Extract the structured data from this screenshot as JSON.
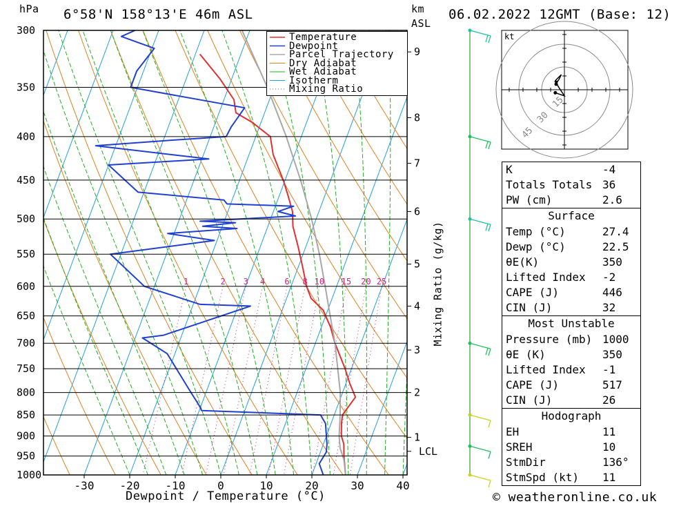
{
  "header": {
    "unit_left": "hPa",
    "location": "6°58'N 158°13'E 46m ASL",
    "km_label": "km",
    "asl_label": "ASL",
    "datetime": "06.02.2022 12GMT (Base: 12)"
  },
  "chart_data": {
    "type": "line",
    "title": "6°58'N 158°13'E 46m ASL",
    "xlabel": "Dewpoint / Temperature (°C)",
    "ylabel": "hPa",
    "y2label": "Mixing Ratio (g/kg)",
    "xlim": [
      -40,
      40
    ],
    "ylim": [
      1000,
      300
    ],
    "y_scale": "log",
    "x_ticks": [
      -30,
      -20,
      -10,
      0,
      10,
      20,
      30,
      40
    ],
    "pressure_levels": [
      300,
      350,
      400,
      450,
      500,
      550,
      600,
      650,
      700,
      750,
      800,
      850,
      900,
      950,
      1000
    ],
    "height_km_ticks": [
      {
        "label": "9",
        "p": 318
      },
      {
        "label": "8",
        "p": 380
      },
      {
        "label": "7",
        "p": 430
      },
      {
        "label": "6",
        "p": 490
      },
      {
        "label": "5",
        "p": 565
      },
      {
        "label": "4",
        "p": 633
      },
      {
        "label": "3",
        "p": 713
      },
      {
        "label": "2",
        "p": 800
      },
      {
        "label": "1",
        "p": 903
      },
      {
        "label": "LCL",
        "p": 938
      }
    ],
    "mixing_ratio_labels": [
      "1",
      "2",
      "3",
      "4",
      "6",
      "8",
      "10",
      "15",
      "20",
      "25"
    ],
    "mixing_ratio_values": [
      1,
      2,
      3,
      4,
      6,
      8,
      10,
      15,
      20,
      25
    ],
    "legend": [
      "Temperature",
      "Dewpoint",
      "Parcel Trajectory",
      "Dry Adiabat",
      "Wet Adiabat",
      "Isotherm",
      "Mixing Ratio"
    ],
    "legend_position": "top-right",
    "colors": {
      "temperature": "#e03030",
      "dewpoint": "#2040d0",
      "parcel": "#a8a8a8",
      "dry_adiabat": "#e08020",
      "wet_adiabat": "#20b020",
      "isotherm": "#20a0e0",
      "mixing": "#d02080"
    },
    "series": [
      {
        "name": "Temperature",
        "points": [
          [
            27.4,
            1000
          ],
          [
            25.5,
            950
          ],
          [
            24.5,
            920
          ],
          [
            23.3,
            900
          ],
          [
            22.3,
            870
          ],
          [
            21.8,
            850
          ],
          [
            22.5,
            830
          ],
          [
            23.2,
            810
          ],
          [
            20.8,
            780
          ],
          [
            18.6,
            750
          ],
          [
            14.3,
            700
          ],
          [
            12.0,
            670
          ],
          [
            9.0,
            640
          ],
          [
            5.4,
            620
          ],
          [
            3.4,
            600
          ],
          [
            1.0,
            570
          ],
          [
            -1.6,
            540
          ],
          [
            -4.5,
            510
          ],
          [
            -5.8,
            490
          ],
          [
            -8.0,
            470
          ],
          [
            -10.4,
            450
          ],
          [
            -14.7,
            420
          ],
          [
            -16.8,
            400
          ],
          [
            -21.9,
            385
          ],
          [
            -26.3,
            375
          ],
          [
            -27.8,
            362
          ],
          [
            -32.6,
            342
          ],
          [
            -39.0,
            320
          ]
        ]
      },
      {
        "name": "Dewpoint",
        "points": [
          [
            22.5,
            1000
          ],
          [
            20.7,
            970
          ],
          [
            21.3,
            940
          ],
          [
            20.8,
            920
          ],
          [
            20.0,
            900
          ],
          [
            18.8,
            870
          ],
          [
            17.0,
            850
          ],
          [
            -9.5,
            840
          ],
          [
            -10.3,
            830
          ],
          [
            -14.3,
            790
          ],
          [
            -21.7,
            720
          ],
          [
            -28.4,
            690
          ],
          [
            -24.0,
            685
          ],
          [
            -7.3,
            633
          ],
          [
            -18.5,
            630
          ],
          [
            -32.2,
            600
          ],
          [
            -42.3,
            550
          ],
          [
            -20.6,
            530
          ],
          [
            -31.4,
            520
          ],
          [
            -16.6,
            513
          ],
          [
            -24.3,
            510
          ],
          [
            -17.4,
            505
          ],
          [
            -25.3,
            503
          ],
          [
            -4.8,
            496
          ],
          [
            -9.0,
            490
          ],
          [
            -6.0,
            483
          ],
          [
            -20.8,
            480
          ],
          [
            -21.8,
            475
          ],
          [
            -41.3,
            465
          ],
          [
            -50.0,
            432
          ],
          [
            -28.5,
            425
          ],
          [
            -54.4,
            410
          ],
          [
            -38.5,
            404
          ],
          [
            -26.5,
            400
          ],
          [
            -26.2,
            390
          ],
          [
            -24.8,
            370
          ],
          [
            -51.5,
            350
          ],
          [
            -51.5,
            335
          ],
          [
            -49.5,
            315
          ],
          [
            -57.7,
            305
          ],
          [
            -55.2,
            300
          ]
        ]
      },
      {
        "name": "Parcel Trajectory",
        "points": [
          [
            27.4,
            1000
          ],
          [
            25.8,
            960
          ],
          [
            24.0,
            930
          ],
          [
            22.8,
            900
          ],
          [
            21.3,
            850
          ],
          [
            19.5,
            800
          ],
          [
            17.0,
            750
          ],
          [
            14.3,
            700
          ],
          [
            11.0,
            650
          ],
          [
            7.5,
            600
          ],
          [
            3.6,
            550
          ],
          [
            -1.0,
            500
          ],
          [
            -6.6,
            450
          ],
          [
            -13.3,
            400
          ],
          [
            -21.5,
            350
          ],
          [
            -31.7,
            300
          ]
        ]
      }
    ]
  },
  "hodograph": {
    "unit": "kt",
    "ring_labels": [
      "15",
      "30",
      "45"
    ],
    "ring_values": [
      15,
      30,
      45
    ],
    "points": [
      [
        -3,
        -1
      ],
      [
        0,
        -2
      ],
      [
        -2,
        1
      ],
      [
        -3,
        3
      ],
      [
        -2,
        4
      ],
      [
        -1,
        5
      ],
      [
        -2,
        3
      ]
    ]
  },
  "wind_profile": {
    "barb_levels": [
      300,
      400,
      500,
      700,
      850,
      925,
      1000
    ],
    "speeds_kt": [
      20,
      20,
      15,
      15,
      10,
      10,
      5
    ]
  },
  "indices": {
    "k": {
      "label": "K",
      "value": "-4"
    },
    "tt": {
      "label": "Totals Totals",
      "value": "36"
    },
    "pw": {
      "label": "PW (cm)",
      "value": "2.6"
    },
    "surface": {
      "title": "Surface",
      "temp": {
        "label": "Temp (°C)",
        "value": "27.4"
      },
      "dewp": {
        "label": "Dewp (°C)",
        "value": "22.5"
      },
      "theta": {
        "label": "θE(K)",
        "value": "350"
      },
      "li": {
        "label": "Lifted Index",
        "value": "-2"
      },
      "cape": {
        "label": "CAPE (J)",
        "value": "446"
      },
      "cin": {
        "label": "CIN (J)",
        "value": "32"
      }
    },
    "most_unstable": {
      "title": "Most Unstable",
      "pressure": {
        "label": "Pressure (mb)",
        "value": "1000"
      },
      "theta": {
        "label": "θE (K)",
        "value": "350"
      },
      "li": {
        "label": "Lifted Index",
        "value": "-1"
      },
      "cape": {
        "label": "CAPE (J)",
        "value": "517"
      },
      "cin": {
        "label": "CIN (J)",
        "value": "26"
      }
    },
    "hodo": {
      "title": "Hodograph",
      "eh": {
        "label": "EH",
        "value": "11"
      },
      "sreh": {
        "label": "SREH",
        "value": "10"
      },
      "stmdir": {
        "label": "StmDir",
        "value": "136°"
      },
      "stmspd": {
        "label": "StmSpd (kt)",
        "value": "11"
      }
    }
  },
  "footer": {
    "copyright": "© weatheronline.co.uk"
  }
}
